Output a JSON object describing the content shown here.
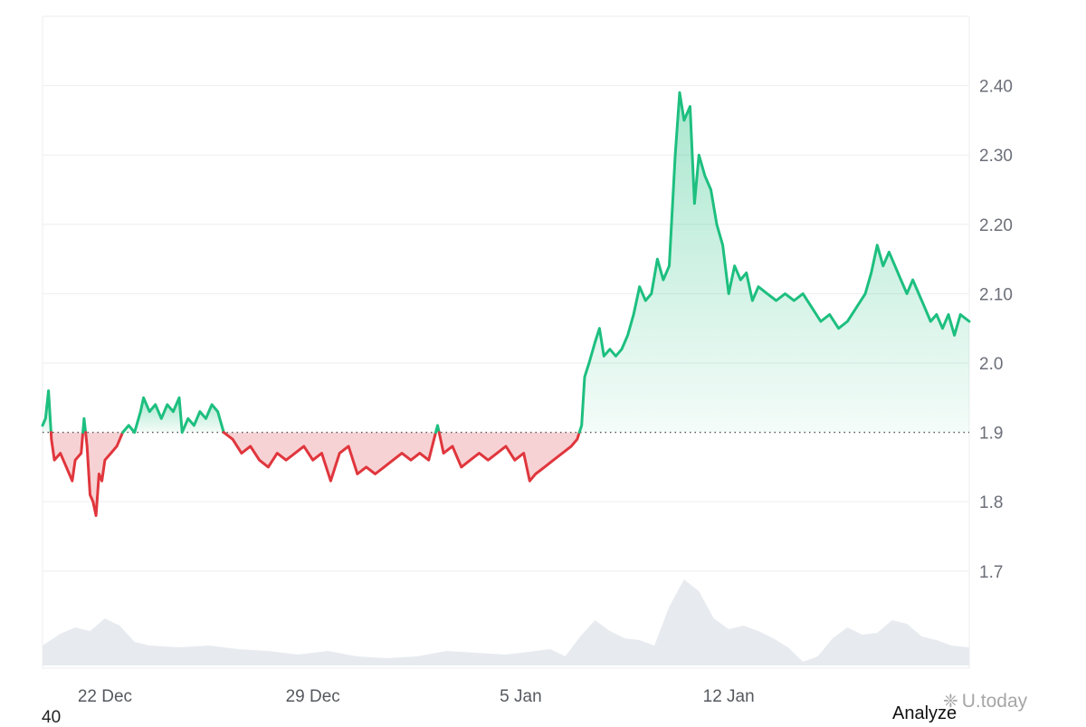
{
  "chart_data": {
    "type": "line",
    "baseline": 1.9,
    "ylim": [
      1.56,
      2.5
    ],
    "y_ticks": [
      "2.40",
      "2.30",
      "2.20",
      "2.10",
      "2.0",
      "1.9",
      "1.8",
      "1.7"
    ],
    "x_ticks": [
      {
        "label": "22 Dec",
        "day": 22
      },
      {
        "label": "29 Dec",
        "day": 29
      },
      {
        "label": "5 Jan",
        "day": 36
      },
      {
        "label": "12 Jan",
        "day": 43
      }
    ],
    "x_range_days": [
      19.9,
      51.1
    ],
    "price": [
      [
        19.9,
        1.91
      ],
      [
        20.0,
        1.92
      ],
      [
        20.1,
        1.96
      ],
      [
        20.2,
        1.89
      ],
      [
        20.3,
        1.86
      ],
      [
        20.5,
        1.87
      ],
      [
        20.7,
        1.85
      ],
      [
        20.9,
        1.83
      ],
      [
        21.0,
        1.86
      ],
      [
        21.2,
        1.87
      ],
      [
        21.3,
        1.92
      ],
      [
        21.4,
        1.88
      ],
      [
        21.5,
        1.81
      ],
      [
        21.6,
        1.8
      ],
      [
        21.7,
        1.78
      ],
      [
        21.8,
        1.84
      ],
      [
        21.9,
        1.83
      ],
      [
        22.0,
        1.86
      ],
      [
        22.2,
        1.87
      ],
      [
        22.4,
        1.88
      ],
      [
        22.6,
        1.9
      ],
      [
        22.8,
        1.91
      ],
      [
        23.0,
        1.9
      ],
      [
        23.2,
        1.93
      ],
      [
        23.3,
        1.95
      ],
      [
        23.5,
        1.93
      ],
      [
        23.7,
        1.94
      ],
      [
        23.9,
        1.92
      ],
      [
        24.1,
        1.94
      ],
      [
        24.3,
        1.93
      ],
      [
        24.5,
        1.95
      ],
      [
        24.6,
        1.9
      ],
      [
        24.8,
        1.92
      ],
      [
        25.0,
        1.91
      ],
      [
        25.2,
        1.93
      ],
      [
        25.4,
        1.92
      ],
      [
        25.6,
        1.94
      ],
      [
        25.8,
        1.93
      ],
      [
        26.0,
        1.9
      ],
      [
        26.3,
        1.89
      ],
      [
        26.6,
        1.87
      ],
      [
        26.9,
        1.88
      ],
      [
        27.2,
        1.86
      ],
      [
        27.5,
        1.85
      ],
      [
        27.8,
        1.87
      ],
      [
        28.1,
        1.86
      ],
      [
        28.4,
        1.87
      ],
      [
        28.7,
        1.88
      ],
      [
        29.0,
        1.86
      ],
      [
        29.3,
        1.87
      ],
      [
        29.6,
        1.83
      ],
      [
        29.9,
        1.87
      ],
      [
        30.2,
        1.88
      ],
      [
        30.5,
        1.84
      ],
      [
        30.8,
        1.85
      ],
      [
        31.1,
        1.84
      ],
      [
        31.4,
        1.85
      ],
      [
        31.7,
        1.86
      ],
      [
        32.0,
        1.87
      ],
      [
        32.3,
        1.86
      ],
      [
        32.6,
        1.87
      ],
      [
        32.9,
        1.86
      ],
      [
        33.2,
        1.91
      ],
      [
        33.4,
        1.87
      ],
      [
        33.7,
        1.88
      ],
      [
        34.0,
        1.85
      ],
      [
        34.3,
        1.86
      ],
      [
        34.6,
        1.87
      ],
      [
        34.9,
        1.86
      ],
      [
        35.2,
        1.87
      ],
      [
        35.5,
        1.88
      ],
      [
        35.8,
        1.86
      ],
      [
        36.1,
        1.87
      ],
      [
        36.3,
        1.83
      ],
      [
        36.5,
        1.84
      ],
      [
        36.8,
        1.85
      ],
      [
        37.1,
        1.86
      ],
      [
        37.4,
        1.87
      ],
      [
        37.7,
        1.88
      ],
      [
        37.9,
        1.89
      ],
      [
        38.05,
        1.91
      ],
      [
        38.15,
        1.98
      ],
      [
        38.3,
        2.0
      ],
      [
        38.5,
        2.03
      ],
      [
        38.65,
        2.05
      ],
      [
        38.8,
        2.01
      ],
      [
        39.0,
        2.02
      ],
      [
        39.2,
        2.01
      ],
      [
        39.4,
        2.02
      ],
      [
        39.6,
        2.04
      ],
      [
        39.8,
        2.07
      ],
      [
        40.0,
        2.11
      ],
      [
        40.2,
        2.09
      ],
      [
        40.4,
        2.1
      ],
      [
        40.6,
        2.15
      ],
      [
        40.8,
        2.12
      ],
      [
        41.0,
        2.14
      ],
      [
        41.2,
        2.3
      ],
      [
        41.35,
        2.39
      ],
      [
        41.5,
        2.35
      ],
      [
        41.7,
        2.37
      ],
      [
        41.85,
        2.23
      ],
      [
        42.0,
        2.3
      ],
      [
        42.2,
        2.27
      ],
      [
        42.4,
        2.25
      ],
      [
        42.6,
        2.2
      ],
      [
        42.8,
        2.17
      ],
      [
        43.0,
        2.1
      ],
      [
        43.2,
        2.14
      ],
      [
        43.4,
        2.12
      ],
      [
        43.6,
        2.13
      ],
      [
        43.8,
        2.09
      ],
      [
        44.0,
        2.11
      ],
      [
        44.3,
        2.1
      ],
      [
        44.6,
        2.09
      ],
      [
        44.9,
        2.1
      ],
      [
        45.2,
        2.09
      ],
      [
        45.5,
        2.1
      ],
      [
        45.8,
        2.08
      ],
      [
        46.1,
        2.06
      ],
      [
        46.4,
        2.07
      ],
      [
        46.7,
        2.05
      ],
      [
        47.0,
        2.06
      ],
      [
        47.3,
        2.08
      ],
      [
        47.6,
        2.1
      ],
      [
        47.8,
        2.13
      ],
      [
        48.0,
        2.17
      ],
      [
        48.2,
        2.14
      ],
      [
        48.4,
        2.16
      ],
      [
        48.6,
        2.14
      ],
      [
        48.8,
        2.12
      ],
      [
        49.0,
        2.1
      ],
      [
        49.2,
        2.12
      ],
      [
        49.4,
        2.1
      ],
      [
        49.6,
        2.08
      ],
      [
        49.8,
        2.06
      ],
      [
        50.0,
        2.07
      ],
      [
        50.2,
        2.05
      ],
      [
        50.4,
        2.07
      ],
      [
        50.6,
        2.04
      ],
      [
        50.8,
        2.07
      ],
      [
        51.1,
        2.06
      ]
    ],
    "volume_relative": [
      [
        19.9,
        0.22
      ],
      [
        20.5,
        0.35
      ],
      [
        21.0,
        0.42
      ],
      [
        21.5,
        0.38
      ],
      [
        22.0,
        0.52
      ],
      [
        22.5,
        0.44
      ],
      [
        23.0,
        0.26
      ],
      [
        23.5,
        0.22
      ],
      [
        24.5,
        0.2
      ],
      [
        25.5,
        0.22
      ],
      [
        26.5,
        0.18
      ],
      [
        27.5,
        0.16
      ],
      [
        28.5,
        0.12
      ],
      [
        29.5,
        0.16
      ],
      [
        30.5,
        0.1
      ],
      [
        31.5,
        0.08
      ],
      [
        32.5,
        0.1
      ],
      [
        33.5,
        0.16
      ],
      [
        34.5,
        0.14
      ],
      [
        35.5,
        0.12
      ],
      [
        36.5,
        0.16
      ],
      [
        37.0,
        0.18
      ],
      [
        37.5,
        0.1
      ],
      [
        38.0,
        0.32
      ],
      [
        38.5,
        0.5
      ],
      [
        39.0,
        0.38
      ],
      [
        39.5,
        0.3
      ],
      [
        40.0,
        0.28
      ],
      [
        40.5,
        0.22
      ],
      [
        41.0,
        0.65
      ],
      [
        41.5,
        0.95
      ],
      [
        42.0,
        0.82
      ],
      [
        42.5,
        0.52
      ],
      [
        43.0,
        0.4
      ],
      [
        43.5,
        0.44
      ],
      [
        44.0,
        0.38
      ],
      [
        44.5,
        0.3
      ],
      [
        45.0,
        0.2
      ],
      [
        45.5,
        0.04
      ],
      [
        46.0,
        0.1
      ],
      [
        46.5,
        0.3
      ],
      [
        47.0,
        0.42
      ],
      [
        47.5,
        0.34
      ],
      [
        48.0,
        0.36
      ],
      [
        48.5,
        0.5
      ],
      [
        49.0,
        0.46
      ],
      [
        49.5,
        0.32
      ],
      [
        50.0,
        0.28
      ],
      [
        50.5,
        0.22
      ],
      [
        51.1,
        0.2
      ]
    ]
  },
  "colors": {
    "up": "#1dbf7f",
    "down": "#e0363d",
    "up_fill": "#d6f5e6",
    "down_fill": "#f7d2d4",
    "volume": "#e7ebef",
    "grid": "#eceef1",
    "baseline": "#555555"
  },
  "stray_label": "40",
  "analyze_label": "Analyze",
  "watermark": {
    "icon": "share-icon",
    "text": "U.today"
  }
}
